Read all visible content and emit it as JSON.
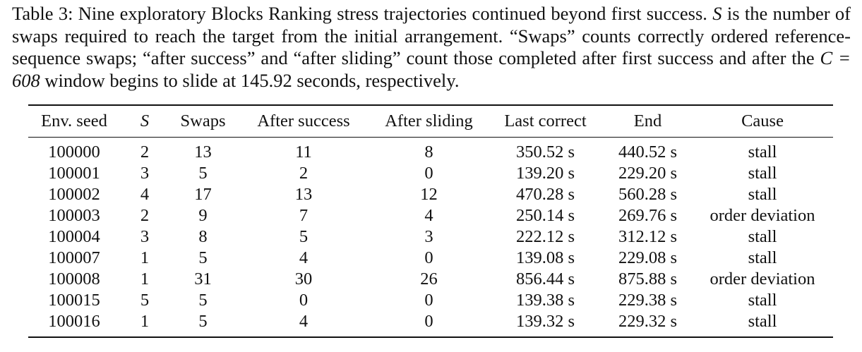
{
  "caption": [
    "Table 3: Nine exploratory Blocks Ranking stress trajectories continued beyond first success. ",
    "S",
    " is the number of swaps required to reach the target from the initial arrangement. “Swaps” counts correctly ordered reference-sequence swaps; “after success” and “after sliding” count those completed after first success and after the ",
    "C = 608",
    " window begins to slide at 145.92 seconds, respectively."
  ],
  "table": {
    "header": [
      "Env. seed",
      "S",
      "Swaps",
      "After success",
      "After sliding",
      "Last correct",
      "End",
      "Cause"
    ],
    "rows": [
      [
        "100000",
        "2",
        "13",
        "11",
        "8",
        "350.52 s",
        "440.52 s",
        "stall"
      ],
      [
        "100001",
        "3",
        "5",
        "2",
        "0",
        "139.20 s",
        "229.20 s",
        "stall"
      ],
      [
        "100002",
        "4",
        "17",
        "13",
        "12",
        "470.28 s",
        "560.28 s",
        "stall"
      ],
      [
        "100003",
        "2",
        "9",
        "7",
        "4",
        "250.14 s",
        "269.76 s",
        "order deviation"
      ],
      [
        "100004",
        "3",
        "8",
        "5",
        "3",
        "222.12 s",
        "312.12 s",
        "stall"
      ],
      [
        "100007",
        "1",
        "5",
        "4",
        "0",
        "139.08 s",
        "229.08 s",
        "stall"
      ],
      [
        "100008",
        "1",
        "31",
        "30",
        "26",
        "856.44 s",
        "875.88 s",
        "order deviation"
      ],
      [
        "100015",
        "5",
        "5",
        "0",
        "0",
        "139.38 s",
        "229.38 s",
        "stall"
      ],
      [
        "100016",
        "1",
        "5",
        "4",
        "0",
        "139.32 s",
        "229.32 s",
        "stall"
      ]
    ]
  }
}
